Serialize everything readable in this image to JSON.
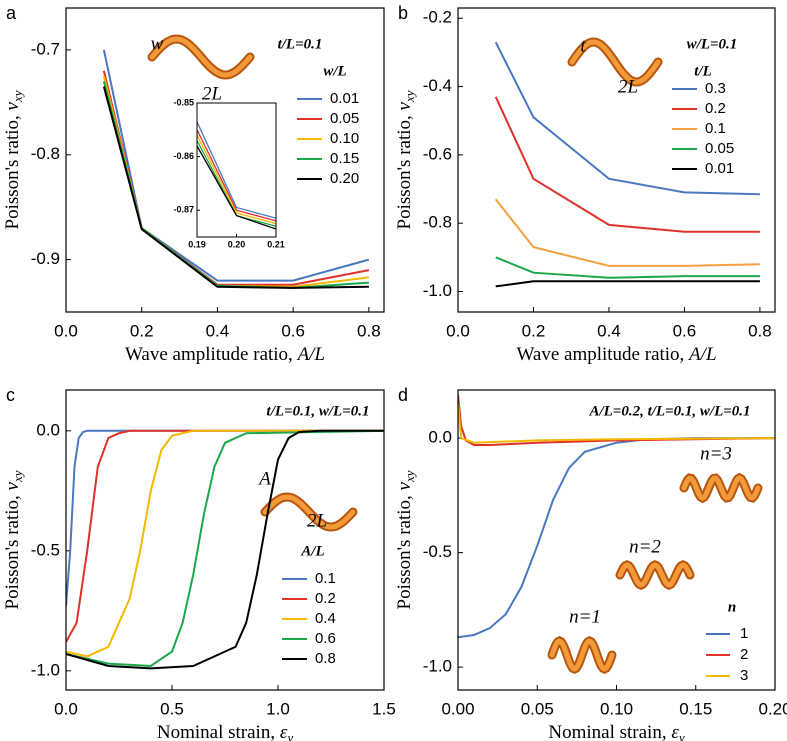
{
  "chart_data": [
    {
      "type": "line",
      "panel": "a",
      "ylabel": {
        "text": "Poisson's ratio, ",
        "symbol": "v",
        "sub": "xy"
      },
      "xlabel": {
        "text": "Wave amplitude ratio, ",
        "symbol": "A/L"
      },
      "annotation": "t/L=0.1",
      "diagram_labels": [
        "w",
        "2L"
      ],
      "legend_title": "w/L",
      "xlim": [
        0,
        0.84
      ],
      "ylim": [
        -0.95,
        -0.66
      ],
      "xticks": [
        {
          "value": 0,
          "label": "0.0"
        },
        0.2,
        0.4,
        0.6,
        0.8
      ],
      "yticks": [
        -0.9,
        -0.8,
        -0.7
      ],
      "x": [
        0.1,
        0.2,
        0.4,
        0.6,
        0.8
      ],
      "series": [
        {
          "name": "0.01",
          "color": "#4a78c0",
          "values": [
            -0.7,
            -0.87,
            -0.92,
            -0.92,
            -0.9
          ]
        },
        {
          "name": "0.05",
          "color": "#e0302a",
          "values": [
            -0.72,
            -0.87,
            -0.924,
            -0.924,
            -0.91
          ]
        },
        {
          "name": "0.10",
          "color": "#f5b800",
          "values": [
            -0.725,
            -0.87,
            -0.925,
            -0.926,
            -0.917
          ]
        },
        {
          "name": "0.15",
          "color": "#1aa84a",
          "values": [
            -0.73,
            -0.87,
            -0.925,
            -0.927,
            -0.922
          ]
        },
        {
          "name": "0.20",
          "color": "#000000",
          "values": [
            -0.735,
            -0.871,
            -0.926,
            -0.927,
            -0.926
          ]
        }
      ],
      "inset": {
        "type": "line",
        "xlim": [
          0.19,
          0.21
        ],
        "ylim": [
          -0.875,
          -0.85
        ],
        "xticks": [
          0.19,
          {
            "value": 0.2,
            "label": "0.20"
          },
          0.21
        ],
        "yticks": [
          -0.87,
          -0.86,
          -0.85
        ],
        "x": [
          0.19,
          0.2,
          0.21
        ],
        "series": [
          {
            "color": "#4a78c0",
            "values": [
              -0.8535,
              -0.8695,
              -0.8715
            ]
          },
          {
            "color": "#e0302a",
            "values": [
              -0.855,
              -0.87,
              -0.872
            ]
          },
          {
            "color": "#f5b800",
            "values": [
              -0.856,
              -0.8705,
              -0.8725
            ]
          },
          {
            "color": "#1aa84a",
            "values": [
              -0.857,
              -0.871,
              -0.873
            ]
          },
          {
            "color": "#000000",
            "values": [
              -0.858,
              -0.871,
              -0.8735
            ]
          }
        ]
      }
    },
    {
      "type": "line",
      "panel": "b",
      "ylabel": {
        "text": "Poisson's ratio, ",
        "symbol": "v",
        "sub": "xy"
      },
      "xlabel": {
        "text": "Wave amplitude ratio, ",
        "symbol": "A/L"
      },
      "annotation": "w/L=0.1",
      "diagram_labels": [
        "t",
        "2L"
      ],
      "legend_title": "t/L",
      "xlim": [
        0,
        0.84
      ],
      "ylim": [
        -1.06,
        -0.17
      ],
      "xticks": [
        {
          "value": 0,
          "label": "0.0"
        },
        0.2,
        0.4,
        0.6,
        0.8
      ],
      "yticks": [
        {
          "value": -1,
          "label": "-1.0"
        },
        -0.8,
        -0.6,
        -0.4,
        -0.2
      ],
      "x": [
        0.1,
        0.2,
        0.4,
        0.6,
        0.8
      ],
      "series": [
        {
          "name": "0.3",
          "color": "#4a78c0",
          "values": [
            -0.27,
            -0.49,
            -0.67,
            -0.71,
            -0.715
          ]
        },
        {
          "name": "0.2",
          "color": "#e0302a",
          "values": [
            -0.43,
            -0.67,
            -0.805,
            -0.825,
            -0.825
          ]
        },
        {
          "name": "0.1",
          "color": "#f7a040",
          "values": [
            -0.73,
            -0.87,
            -0.925,
            -0.925,
            -0.92
          ]
        },
        {
          "name": "0.05",
          "color": "#1aa84a",
          "values": [
            -0.9,
            -0.945,
            -0.96,
            -0.955,
            -0.955
          ]
        },
        {
          "name": "0.01",
          "color": "#000000",
          "values": [
            -0.985,
            -0.97,
            -0.97,
            -0.97,
            -0.97
          ]
        }
      ]
    },
    {
      "type": "line",
      "panel": "c",
      "ylabel": {
        "text": "Poisson's ratio, ",
        "symbol": "v",
        "sub": "xy"
      },
      "xlabel": {
        "text": "Nominal strain, ",
        "symbol": "ε",
        "sub": "y"
      },
      "annotation": "t/L=0.1, w/L=0.1",
      "diagram_labels": [
        "A",
        "2L"
      ],
      "legend_title": "A/L",
      "xlim": [
        0,
        1.5
      ],
      "ylim": [
        -1.08,
        0.17
      ],
      "xticks": [
        {
          "value": 0,
          "label": "0.0"
        },
        0.5,
        {
          "value": 1,
          "label": "1.0"
        },
        1.5
      ],
      "yticks": [
        {
          "value": -1,
          "label": "-1.0"
        },
        -0.5,
        {
          "value": 0,
          "label": "0.0"
        }
      ],
      "series": [
        {
          "name": "0.1",
          "color": "#4a78c0",
          "x": [
            0,
            0.02,
            0.04,
            0.06,
            0.08,
            0.1,
            0.15,
            1.5
          ],
          "values": [
            -0.73,
            -0.5,
            -0.15,
            -0.03,
            -0.005,
            0,
            0,
            0
          ]
        },
        {
          "name": "0.2",
          "color": "#e0302a",
          "x": [
            0,
            0.05,
            0.1,
            0.15,
            0.2,
            0.25,
            0.3,
            1.5
          ],
          "values": [
            -0.88,
            -0.8,
            -0.5,
            -0.15,
            -0.03,
            -0.01,
            0,
            0
          ]
        },
        {
          "name": "0.4",
          "color": "#f5b800",
          "x": [
            0,
            0.1,
            0.2,
            0.3,
            0.35,
            0.4,
            0.45,
            0.5,
            0.6,
            1.5
          ],
          "values": [
            -0.92,
            -0.94,
            -0.9,
            -0.7,
            -0.5,
            -0.25,
            -0.08,
            -0.02,
            0,
            0
          ]
        },
        {
          "name": "0.6",
          "color": "#1aa84a",
          "x": [
            0,
            0.2,
            0.4,
            0.5,
            0.55,
            0.6,
            0.65,
            0.7,
            0.75,
            0.85,
            1.5
          ],
          "values": [
            -0.93,
            -0.97,
            -0.98,
            -0.92,
            -0.8,
            -0.6,
            -0.35,
            -0.15,
            -0.05,
            -0.01,
            0
          ]
        },
        {
          "name": "0.8",
          "color": "#000000",
          "x": [
            0,
            0.2,
            0.4,
            0.6,
            0.8,
            0.85,
            0.9,
            0.95,
            1.0,
            1.05,
            1.1,
            1.2,
            1.5
          ],
          "values": [
            -0.93,
            -0.98,
            -0.99,
            -0.98,
            -0.9,
            -0.8,
            -0.6,
            -0.35,
            -0.12,
            -0.03,
            -0.005,
            0,
            0
          ]
        }
      ]
    },
    {
      "type": "line",
      "panel": "d",
      "ylabel": {
        "text": "Poisson's ratio, ",
        "symbol": "v",
        "sub": "xy"
      },
      "xlabel": {
        "text": "Nominal strain, ",
        "symbol": "ε",
        "sub": "y"
      },
      "annotation": "A/L=0.2, t/L=0.1, w/L=0.1",
      "diagram_labels": [
        "n=1",
        "n=2",
        "n=3"
      ],
      "legend_title": "n",
      "xlim": [
        0,
        0.2
      ],
      "ylim": [
        -1.1,
        0.21
      ],
      "xticks": [
        {
          "value": 0,
          "label": "0.00"
        },
        0.05,
        {
          "value": 0.1,
          "label": "0.10"
        },
        0.15,
        {
          "value": 0.2,
          "label": "0.20"
        }
      ],
      "yticks": [
        {
          "value": -1,
          "label": "-1.0"
        },
        -0.5,
        {
          "value": 0,
          "label": "0.0"
        }
      ],
      "series": [
        {
          "name": "1",
          "color": "#4a78c0",
          "x": [
            0,
            0.01,
            0.02,
            0.03,
            0.04,
            0.05,
            0.06,
            0.07,
            0.08,
            0.1,
            0.12,
            0.15,
            0.2
          ],
          "values": [
            -0.87,
            -0.86,
            -0.83,
            -0.77,
            -0.65,
            -0.47,
            -0.27,
            -0.13,
            -0.06,
            -0.02,
            -0.005,
            0,
            0
          ]
        },
        {
          "name": "2",
          "color": "#e0302a",
          "x": [
            0,
            0.002,
            0.005,
            0.01,
            0.02,
            0.05,
            0.1,
            0.2
          ],
          "values": [
            0.19,
            0.05,
            -0.01,
            -0.03,
            -0.03,
            -0.02,
            -0.01,
            0
          ]
        },
        {
          "name": "3",
          "color": "#f5b800",
          "x": [
            0,
            0.002,
            0.01,
            0.05,
            0.1,
            0.2
          ],
          "values": [
            0.15,
            0,
            -0.02,
            -0.01,
            -0.005,
            0
          ]
        }
      ]
    }
  ]
}
